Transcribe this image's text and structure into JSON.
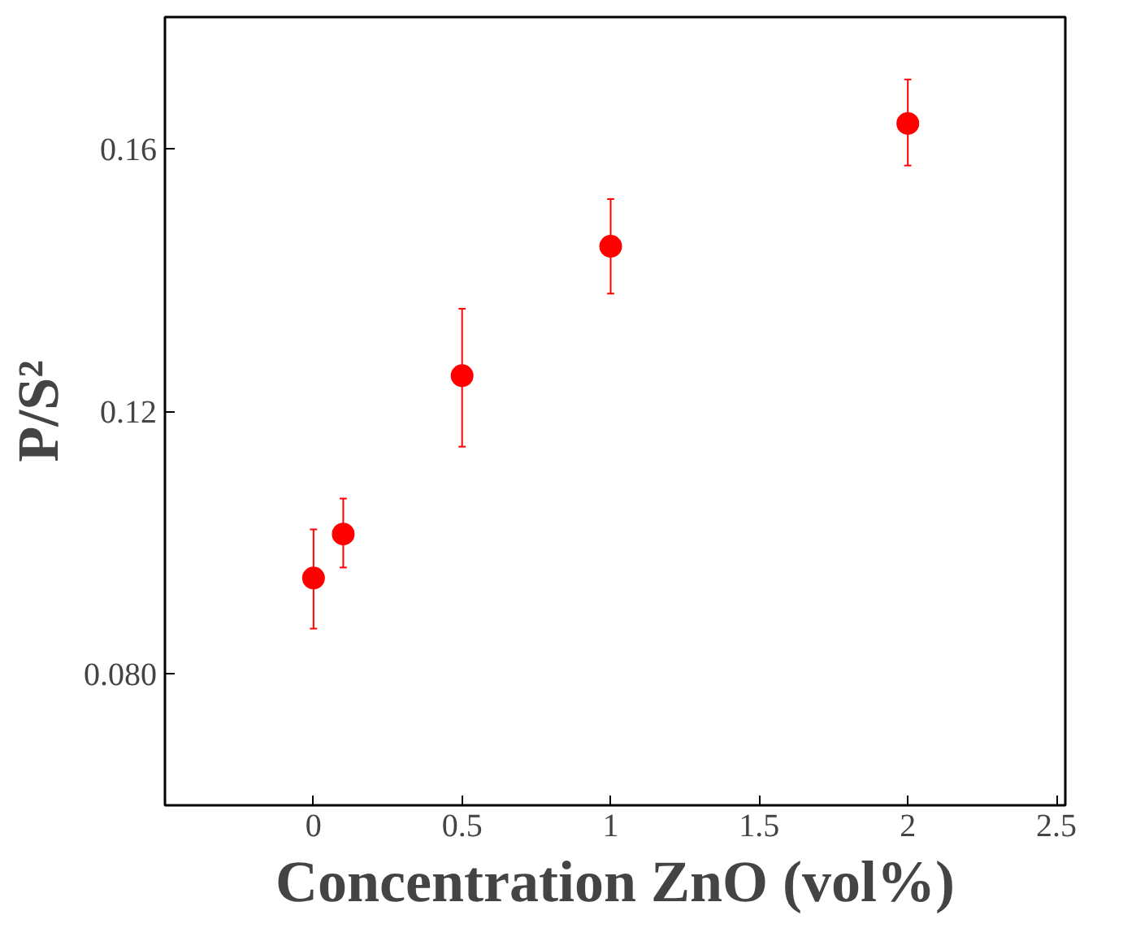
{
  "chart_data": {
    "type": "scatter",
    "xlabel": "Concentration ZnO (vol%)",
    "ylabel": "P/S²",
    "x": [
      0,
      0.1,
      0.5,
      1,
      2
    ],
    "series": [
      {
        "color": "#ff0000",
        "values": [
          0.0946,
          0.1013,
          0.1254,
          0.1451,
          0.1638
        ],
        "errors": [
          [
            0.0869,
            0.102
          ],
          [
            0.0962,
            0.1067
          ],
          [
            0.1146,
            0.1356
          ],
          [
            0.1379,
            0.1523
          ],
          [
            0.1574,
            0.1705
          ]
        ]
      }
    ],
    "xlim": [
      -0.5,
      2.53
    ],
    "ylim": [
      0.06,
      0.18
    ],
    "xticks": [
      0,
      0.5,
      1,
      1.5,
      2,
      2.5
    ],
    "yticks": [
      {
        "value": 0.08,
        "label": "0.080"
      },
      {
        "value": 0.12,
        "label": "0.12"
      },
      {
        "value": 0.16,
        "label": "0.16"
      }
    ],
    "marker": "circle"
  }
}
